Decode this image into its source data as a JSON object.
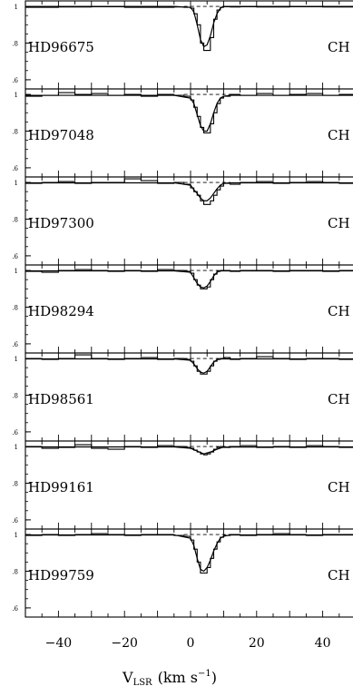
{
  "figure": {
    "xlabel_main": "V",
    "xlabel_sub": "LSR",
    "xlabel_units": "(km  s",
    "xlabel_exp": "−1",
    "xlabel_close": ")"
  },
  "chart_data": [
    {
      "type": "line",
      "star": "HD96675",
      "species": "CH",
      "xlim": [
        -50,
        50
      ],
      "ylim": [
        0.55,
        1.03
      ],
      "y_ticks": [
        ".6",
        ".8",
        "1"
      ],
      "x_ticks": [
        "−40",
        "−20",
        "0",
        "20",
        "40"
      ],
      "continuum": 1.0,
      "series": [
        {
          "style": "histogram",
          "x": [
            -50,
            -40,
            -30,
            -20,
            -10,
            -5,
            -2,
            0,
            1,
            2,
            3,
            4,
            5,
            6,
            7,
            8,
            9,
            10,
            12,
            15,
            20,
            30,
            40,
            50
          ],
          "y": [
            0.995,
            0.997,
            0.998,
            0.995,
            0.995,
            0.997,
            0.995,
            0.99,
            0.96,
            0.9,
            0.8,
            0.76,
            0.76,
            0.83,
            0.93,
            0.98,
            0.995,
            0.998,
            0.997,
            0.998,
            0.997,
            0.998,
            0.997,
            0.997
          ]
        },
        {
          "style": "smooth",
          "x": [
            -50,
            -5,
            0,
            1,
            2,
            3,
            4,
            5,
            6,
            7,
            8,
            9,
            10,
            12,
            50
          ],
          "y": [
            1.0,
            1.0,
            0.995,
            0.97,
            0.9,
            0.82,
            0.78,
            0.79,
            0.84,
            0.91,
            0.96,
            0.99,
            1.0,
            1.0,
            1.0
          ]
        }
      ]
    },
    {
      "type": "line",
      "star": "HD97048",
      "species": "CH",
      "xlim": [
        -50,
        50
      ],
      "ylim": [
        0.55,
        1.03
      ],
      "y_ticks": [
        ".6",
        ".8",
        "1"
      ],
      "x_ticks": [
        "−40",
        "−20",
        "0",
        "20",
        "40"
      ],
      "continuum": 1.0,
      "series": [
        {
          "style": "histogram",
          "x": [
            -50,
            -45,
            -40,
            -35,
            -30,
            -25,
            -20,
            -15,
            -10,
            -5,
            -2,
            0,
            1,
            2,
            3,
            4,
            5,
            6,
            7,
            8,
            9,
            10,
            12,
            15,
            20,
            25,
            30,
            35,
            40,
            45,
            50
          ],
          "y": [
            0.99,
            0.995,
            1.01,
            1.0,
            1.005,
            0.995,
            1.0,
            0.99,
            1.0,
            0.995,
            0.99,
            0.97,
            0.93,
            0.88,
            0.82,
            0.79,
            0.79,
            0.84,
            0.9,
            0.95,
            0.98,
            0.99,
            1.0,
            0.995,
            1.005,
            0.995,
            1.0,
            1.005,
            0.995,
            1.0,
            1.0
          ]
        },
        {
          "style": "smooth",
          "x": [
            -50,
            -5,
            0,
            1,
            2,
            3,
            4,
            5,
            6,
            7,
            8,
            9,
            10,
            12,
            50
          ],
          "y": [
            0.995,
            0.995,
            0.98,
            0.95,
            0.89,
            0.83,
            0.8,
            0.8,
            0.84,
            0.9,
            0.95,
            0.98,
            0.99,
            0.995,
            0.995
          ]
        }
      ]
    },
    {
      "type": "line",
      "star": "HD97300",
      "species": "CH",
      "xlim": [
        -50,
        50
      ],
      "ylim": [
        0.55,
        1.03
      ],
      "y_ticks": [
        ".6",
        ".8",
        "1"
      ],
      "x_ticks": [
        "−40",
        "−20",
        "0",
        "20",
        "40"
      ],
      "continuum": 1.0,
      "series": [
        {
          "style": "histogram",
          "x": [
            -50,
            -45,
            -40,
            -35,
            -30,
            -25,
            -20,
            -15,
            -10,
            -5,
            -2,
            0,
            1,
            2,
            3,
            4,
            5,
            6,
            7,
            8,
            9,
            10,
            12,
            15,
            20,
            25,
            30,
            35,
            40,
            45,
            50
          ],
          "y": [
            0.995,
            1.0,
            1.005,
            0.995,
            1.0,
            1.0,
            1.02,
            1.01,
            0.995,
            1.0,
            0.99,
            0.97,
            0.95,
            0.93,
            0.9,
            0.88,
            0.88,
            0.9,
            0.93,
            0.96,
            0.98,
            0.995,
            0.99,
            1.0,
            1.005,
            0.995,
            1.0,
            1.005,
            1.0,
            0.995,
            1.0
          ]
        },
        {
          "style": "smooth",
          "x": [
            -50,
            -5,
            0,
            1,
            2,
            3,
            4,
            5,
            6,
            7,
            8,
            9,
            10,
            12,
            50
          ],
          "y": [
            0.998,
            0.998,
            0.985,
            0.96,
            0.94,
            0.915,
            0.9,
            0.9,
            0.915,
            0.94,
            0.965,
            0.985,
            0.995,
            0.998,
            0.998
          ]
        }
      ]
    },
    {
      "type": "line",
      "star": "HD98294",
      "species": "CH",
      "xlim": [
        -50,
        50
      ],
      "ylim": [
        0.55,
        1.03
      ],
      "y_ticks": [
        ".6",
        ".8",
        "1"
      ],
      "x_ticks": [
        "−40",
        "−20",
        "0",
        "20",
        "40"
      ],
      "continuum": 1.0,
      "series": [
        {
          "style": "histogram",
          "x": [
            -50,
            -45,
            -40,
            -35,
            -30,
            -25,
            -20,
            -15,
            -10,
            -5,
            -2,
            0,
            1,
            2,
            3,
            4,
            5,
            6,
            7,
            8,
            9,
            10,
            12,
            15,
            20,
            25,
            30,
            35,
            40,
            45,
            50
          ],
          "y": [
            0.995,
            0.99,
            1.0,
            1.005,
            1.0,
            0.995,
            1.0,
            0.995,
            1.005,
            1.0,
            0.995,
            0.985,
            0.95,
            0.92,
            0.9,
            0.9,
            0.91,
            0.95,
            0.98,
            0.995,
            1.0,
            1.0,
            0.995,
            1.0,
            1.0,
            0.995,
            1.0,
            1.0,
            0.995,
            1.0,
            1.0
          ]
        },
        {
          "style": "smooth",
          "x": [
            -50,
            -5,
            0,
            1,
            2,
            3,
            4,
            5,
            6,
            7,
            8,
            9,
            50
          ],
          "y": [
            0.998,
            0.998,
            0.99,
            0.96,
            0.93,
            0.91,
            0.905,
            0.915,
            0.94,
            0.97,
            0.99,
            0.998,
            0.998
          ]
        }
      ]
    },
    {
      "type": "line",
      "star": "HD98561",
      "species": "CH",
      "xlim": [
        -50,
        50
      ],
      "ylim": [
        0.55,
        1.03
      ],
      "y_ticks": [
        ".6",
        ".8",
        "1"
      ],
      "x_ticks": [
        "−40",
        "−20",
        "0",
        "20",
        "40"
      ],
      "continuum": 1.0,
      "series": [
        {
          "style": "histogram",
          "x": [
            -50,
            -45,
            -40,
            -35,
            -30,
            -25,
            -20,
            -15,
            -10,
            -5,
            -2,
            0,
            1,
            2,
            3,
            4,
            5,
            6,
            7,
            8,
            9,
            10,
            12,
            15,
            20,
            25,
            30,
            35,
            40,
            45,
            50
          ],
          "y": [
            1.0,
            0.995,
            1.0,
            1.02,
            1.0,
            0.995,
            1.0,
            1.005,
            0.995,
            1.0,
            0.995,
            0.985,
            0.96,
            0.93,
            0.915,
            0.915,
            0.93,
            0.96,
            0.985,
            0.995,
            1.0,
            1.005,
            0.995,
            1.0,
            1.01,
            1.0,
            0.995,
            1.0,
            1.0,
            0.995,
            1.0
          ]
        },
        {
          "style": "smooth",
          "x": [
            -50,
            -5,
            0,
            1,
            2,
            3,
            4,
            5,
            6,
            7,
            8,
            9,
            50
          ],
          "y": [
            0.998,
            0.998,
            0.99,
            0.97,
            0.945,
            0.925,
            0.92,
            0.93,
            0.955,
            0.98,
            0.993,
            0.998,
            0.998
          ]
        }
      ]
    },
    {
      "type": "line",
      "star": "HD99161",
      "species": "CH",
      "xlim": [
        -50,
        50
      ],
      "ylim": [
        0.55,
        1.03
      ],
      "y_ticks": [
        ".6",
        ".8",
        "1"
      ],
      "x_ticks": [
        "−40",
        "−20",
        "0",
        "20",
        "40"
      ],
      "continuum": 1.0,
      "series": [
        {
          "style": "histogram",
          "x": [
            -50,
            -45,
            -40,
            -35,
            -30,
            -25,
            -20,
            -15,
            -10,
            -5,
            -2,
            0,
            1,
            2,
            3,
            4,
            5,
            6,
            7,
            8,
            9,
            10,
            12,
            15,
            20,
            25,
            30,
            35,
            40,
            45,
            50
          ],
          "y": [
            1.0,
            0.99,
            0.995,
            1.01,
            0.99,
            0.985,
            1.0,
            0.995,
            1.005,
            1.0,
            0.995,
            0.99,
            0.98,
            0.97,
            0.96,
            0.955,
            0.96,
            0.97,
            0.985,
            0.995,
            1.0,
            0.995,
            1.0,
            1.005,
            0.995,
            1.0,
            0.995,
            1.005,
            1.0,
            0.995,
            1.0
          ]
        },
        {
          "style": "smooth",
          "x": [
            -50,
            -5,
            0,
            2,
            4,
            6,
            8,
            10,
            50
          ],
          "y": [
            0.998,
            0.998,
            0.99,
            0.975,
            0.96,
            0.97,
            0.985,
            0.997,
            0.998
          ]
        }
      ]
    },
    {
      "type": "line",
      "star": "HD99759",
      "species": "CH",
      "xlim": [
        -50,
        50
      ],
      "ylim": [
        0.55,
        1.03
      ],
      "y_ticks": [
        ".6",
        ".8",
        "1"
      ],
      "x_ticks": [
        "−40",
        "−20",
        "0",
        "20",
        "40"
      ],
      "continuum": 1.0,
      "series": [
        {
          "style": "histogram",
          "x": [
            -50,
            -45,
            -40,
            -35,
            -30,
            -25,
            -20,
            -15,
            -10,
            -5,
            -2,
            0,
            1,
            2,
            3,
            4,
            5,
            6,
            7,
            8,
            9,
            10,
            12,
            15,
            20,
            25,
            30,
            35,
            40,
            45,
            50
          ],
          "y": [
            0.995,
            1.0,
            0.995,
            1.0,
            1.005,
            1.0,
            0.995,
            1.0,
            1.0,
            0.995,
            0.99,
            0.97,
            0.92,
            0.85,
            0.79,
            0.79,
            0.82,
            0.87,
            0.92,
            0.96,
            0.985,
            0.995,
            1.0,
            0.995,
            1.0,
            1.005,
            1.0,
            0.995,
            1.0,
            1.0,
            1.0
          ]
        },
        {
          "style": "smooth",
          "x": [
            -50,
            -5,
            0,
            1,
            2,
            3,
            4,
            5,
            6,
            7,
            8,
            9,
            10,
            12,
            50
          ],
          "y": [
            0.998,
            0.998,
            0.98,
            0.94,
            0.87,
            0.81,
            0.8,
            0.82,
            0.86,
            0.91,
            0.95,
            0.98,
            0.99,
            0.998,
            0.998
          ]
        }
      ]
    }
  ]
}
